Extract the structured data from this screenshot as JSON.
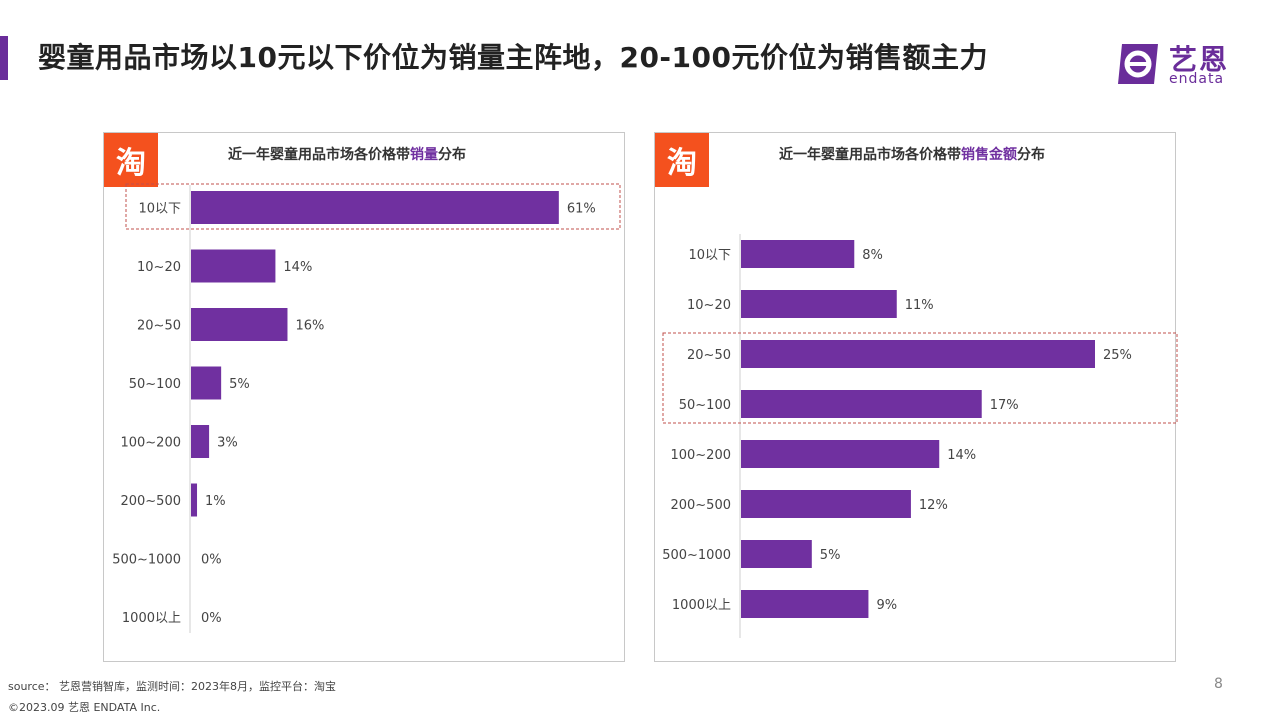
{
  "header": {
    "title": "婴童用品市场以10元以下价位为销量主阵地，20-100元价位为销售额主力"
  },
  "logo": {
    "name": "艺恩",
    "sub": "endata"
  },
  "colors": {
    "bar": "#7030a0",
    "accent": "#6a2d9a",
    "taobao_badge": "#f4511e",
    "highlight_box": "#c0504d"
  },
  "chart_data": [
    {
      "type": "bar",
      "orientation": "horizontal",
      "badge": "淘",
      "title": {
        "prefix": "近一年婴童用品市场各价格带",
        "highlight": "销量",
        "suffix": "分布"
      },
      "categories": [
        "10以下",
        "10~20",
        "20~50",
        "50~100",
        "100~200",
        "200~500",
        "500~1000",
        "1000以上"
      ],
      "values": [
        61,
        14,
        16,
        5,
        3,
        1,
        0,
        0
      ],
      "value_labels": [
        "61%",
        "14%",
        "16%",
        "5%",
        "3%",
        "1%",
        "0%",
        "0%"
      ],
      "unit": "%",
      "highlighted_categories": [
        "10以下"
      ]
    },
    {
      "type": "bar",
      "orientation": "horizontal",
      "badge": "淘",
      "title": {
        "prefix": "近一年婴童用品市场各价格带",
        "highlight": "销售金额",
        "suffix": "分布"
      },
      "categories": [
        "10以下",
        "10~20",
        "20~50",
        "50~100",
        "100~200",
        "200~500",
        "500~1000",
        "1000以上"
      ],
      "values": [
        8,
        11,
        25,
        17,
        14,
        12,
        5,
        9
      ],
      "value_labels": [
        "8%",
        "11%",
        "25%",
        "17%",
        "14%",
        "12%",
        "5%",
        "9%"
      ],
      "unit": "%",
      "highlighted_categories": [
        "20~50",
        "50~100"
      ]
    }
  ],
  "footer": {
    "source": "source： 艺恩营销智库，监测时间：2023年8月，监控平台：淘宝",
    "copyright": "©2023.09  艺恩 ENDATA Inc.",
    "page_number": "8"
  }
}
